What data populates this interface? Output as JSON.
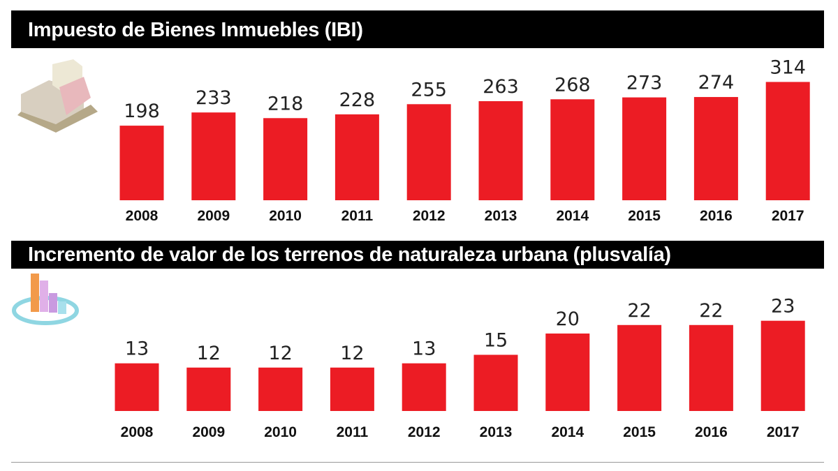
{
  "chart_data": [
    {
      "type": "bar",
      "title": "Impuesto de Bienes Inmuebles (IBI)",
      "icon": "buildings-icon",
      "categories": [
        "2008",
        "2009",
        "2010",
        "2011",
        "2012",
        "2013",
        "2014",
        "2015",
        "2016",
        "2017"
      ],
      "values": [
        198,
        233,
        218,
        228,
        255,
        263,
        268,
        273,
        274,
        314
      ],
      "color": "#ec1c24",
      "xlabel": "",
      "ylabel": ""
    },
    {
      "type": "bar",
      "title": "Incremento de valor de los terrenos de naturaleza urbana (plusvalía)",
      "icon": "bar-chart-icon",
      "categories": [
        "2008",
        "2009",
        "2010",
        "2011",
        "2012",
        "2013",
        "2014",
        "2015",
        "2016",
        "2017"
      ],
      "values": [
        13,
        12,
        12,
        12,
        13,
        15,
        20,
        22,
        22,
        23
      ],
      "color": "#ec1c24",
      "xlabel": "",
      "ylabel": ""
    }
  ]
}
